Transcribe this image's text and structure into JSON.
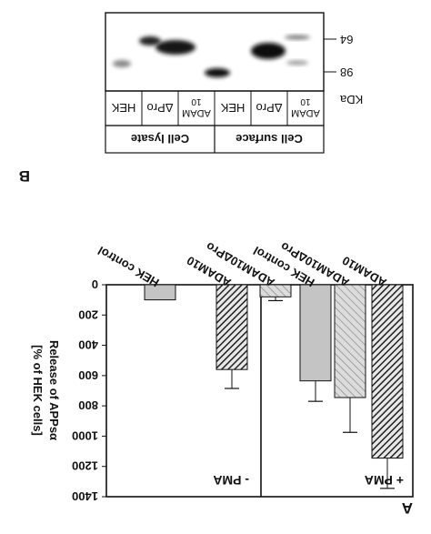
{
  "panel_a_label": "A",
  "panel_b_label": "B",
  "chart_data": {
    "type": "bar",
    "ylabel_line1": "Release of APPsα",
    "ylabel_line2": "[% of HEK cells]",
    "ylim": [
      0,
      1400
    ],
    "yticks": [
      0,
      200,
      400,
      600,
      800,
      1000,
      1200,
      1400
    ],
    "grid": false,
    "categories": [
      "HEK control",
      "ADAM10",
      "ADAM10ΔPro",
      "HEK control",
      "ADAM10",
      "ADAM10ΔPro"
    ],
    "groups": [
      {
        "label": "- PMA",
        "values": [
          100,
          560,
          80
        ],
        "errors": [
          0,
          125,
          25
        ]
      },
      {
        "label": "+ PMA",
        "values": [
          635,
          1145,
          745
        ],
        "errors": [
          135,
          200,
          230
        ]
      }
    ],
    "fill_colors": [
      "#c4c4c4",
      "#555555",
      "#bdbdbd"
    ]
  },
  "blot": {
    "mw_unit": "KDa",
    "mw_markers": [
      "64",
      "98"
    ],
    "lanes": [
      "HEK",
      "ΔPro",
      "ADAM 10",
      "HEK",
      "ΔPro",
      "ADAM 10"
    ],
    "fractions": [
      "Cell lysate",
      "Cell surface"
    ]
  }
}
